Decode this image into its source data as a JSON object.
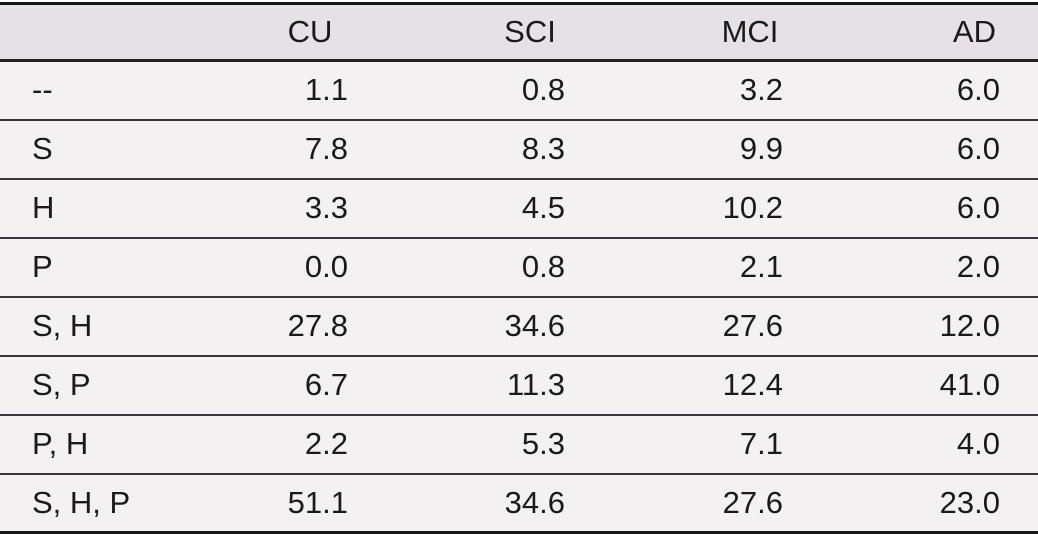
{
  "colors": {
    "page_background": "#ffffff",
    "header_background": "#e5e1e4",
    "row_background": "#f4f1f3",
    "rule_heavy": "#161616",
    "rule_light": "#39373c",
    "text": "#1a1a1a"
  },
  "table": {
    "columns": [
      "",
      "CU",
      "SCI",
      "MCI",
      "AD"
    ],
    "rows": [
      {
        "label": "--",
        "values": [
          "1.1",
          "0.8",
          "3.2",
          "6.0"
        ]
      },
      {
        "label": "S",
        "values": [
          "7.8",
          "8.3",
          "9.9",
          "6.0"
        ]
      },
      {
        "label": "H",
        "values": [
          "3.3",
          "4.5",
          "10.2",
          "6.0"
        ]
      },
      {
        "label": "P",
        "values": [
          "0.0",
          "0.8",
          "2.1",
          "2.0"
        ]
      },
      {
        "label": "S, H",
        "values": [
          "27.8",
          "34.6",
          "27.6",
          "12.0"
        ]
      },
      {
        "label": "S, P",
        "values": [
          "6.7",
          "11.3",
          "12.4",
          "41.0"
        ]
      },
      {
        "label": "P, H",
        "values": [
          "2.2",
          "5.3",
          "7.1",
          "4.0"
        ]
      },
      {
        "label": "S, H, P",
        "values": [
          "51.1",
          "34.6",
          "27.6",
          "23.0"
        ]
      }
    ]
  },
  "chart_data": {
    "type": "table",
    "title": "",
    "columns": [
      "",
      "CU",
      "SCI",
      "MCI",
      "AD"
    ],
    "row_labels": [
      "--",
      "S",
      "H",
      "P",
      "S, H",
      "S, P",
      "P, H",
      "S, H, P"
    ],
    "series": [
      {
        "name": "CU",
        "values": [
          1.1,
          7.8,
          3.3,
          0.0,
          27.8,
          6.7,
          2.2,
          51.1
        ]
      },
      {
        "name": "SCI",
        "values": [
          0.8,
          8.3,
          4.5,
          0.8,
          34.6,
          11.3,
          5.3,
          34.6
        ]
      },
      {
        "name": "MCI",
        "values": [
          3.2,
          9.9,
          10.2,
          2.1,
          27.6,
          12.4,
          7.1,
          27.6
        ]
      },
      {
        "name": "AD",
        "values": [
          6.0,
          6.0,
          6.0,
          2.0,
          12.0,
          41.0,
          4.0,
          23.0
        ]
      }
    ]
  }
}
